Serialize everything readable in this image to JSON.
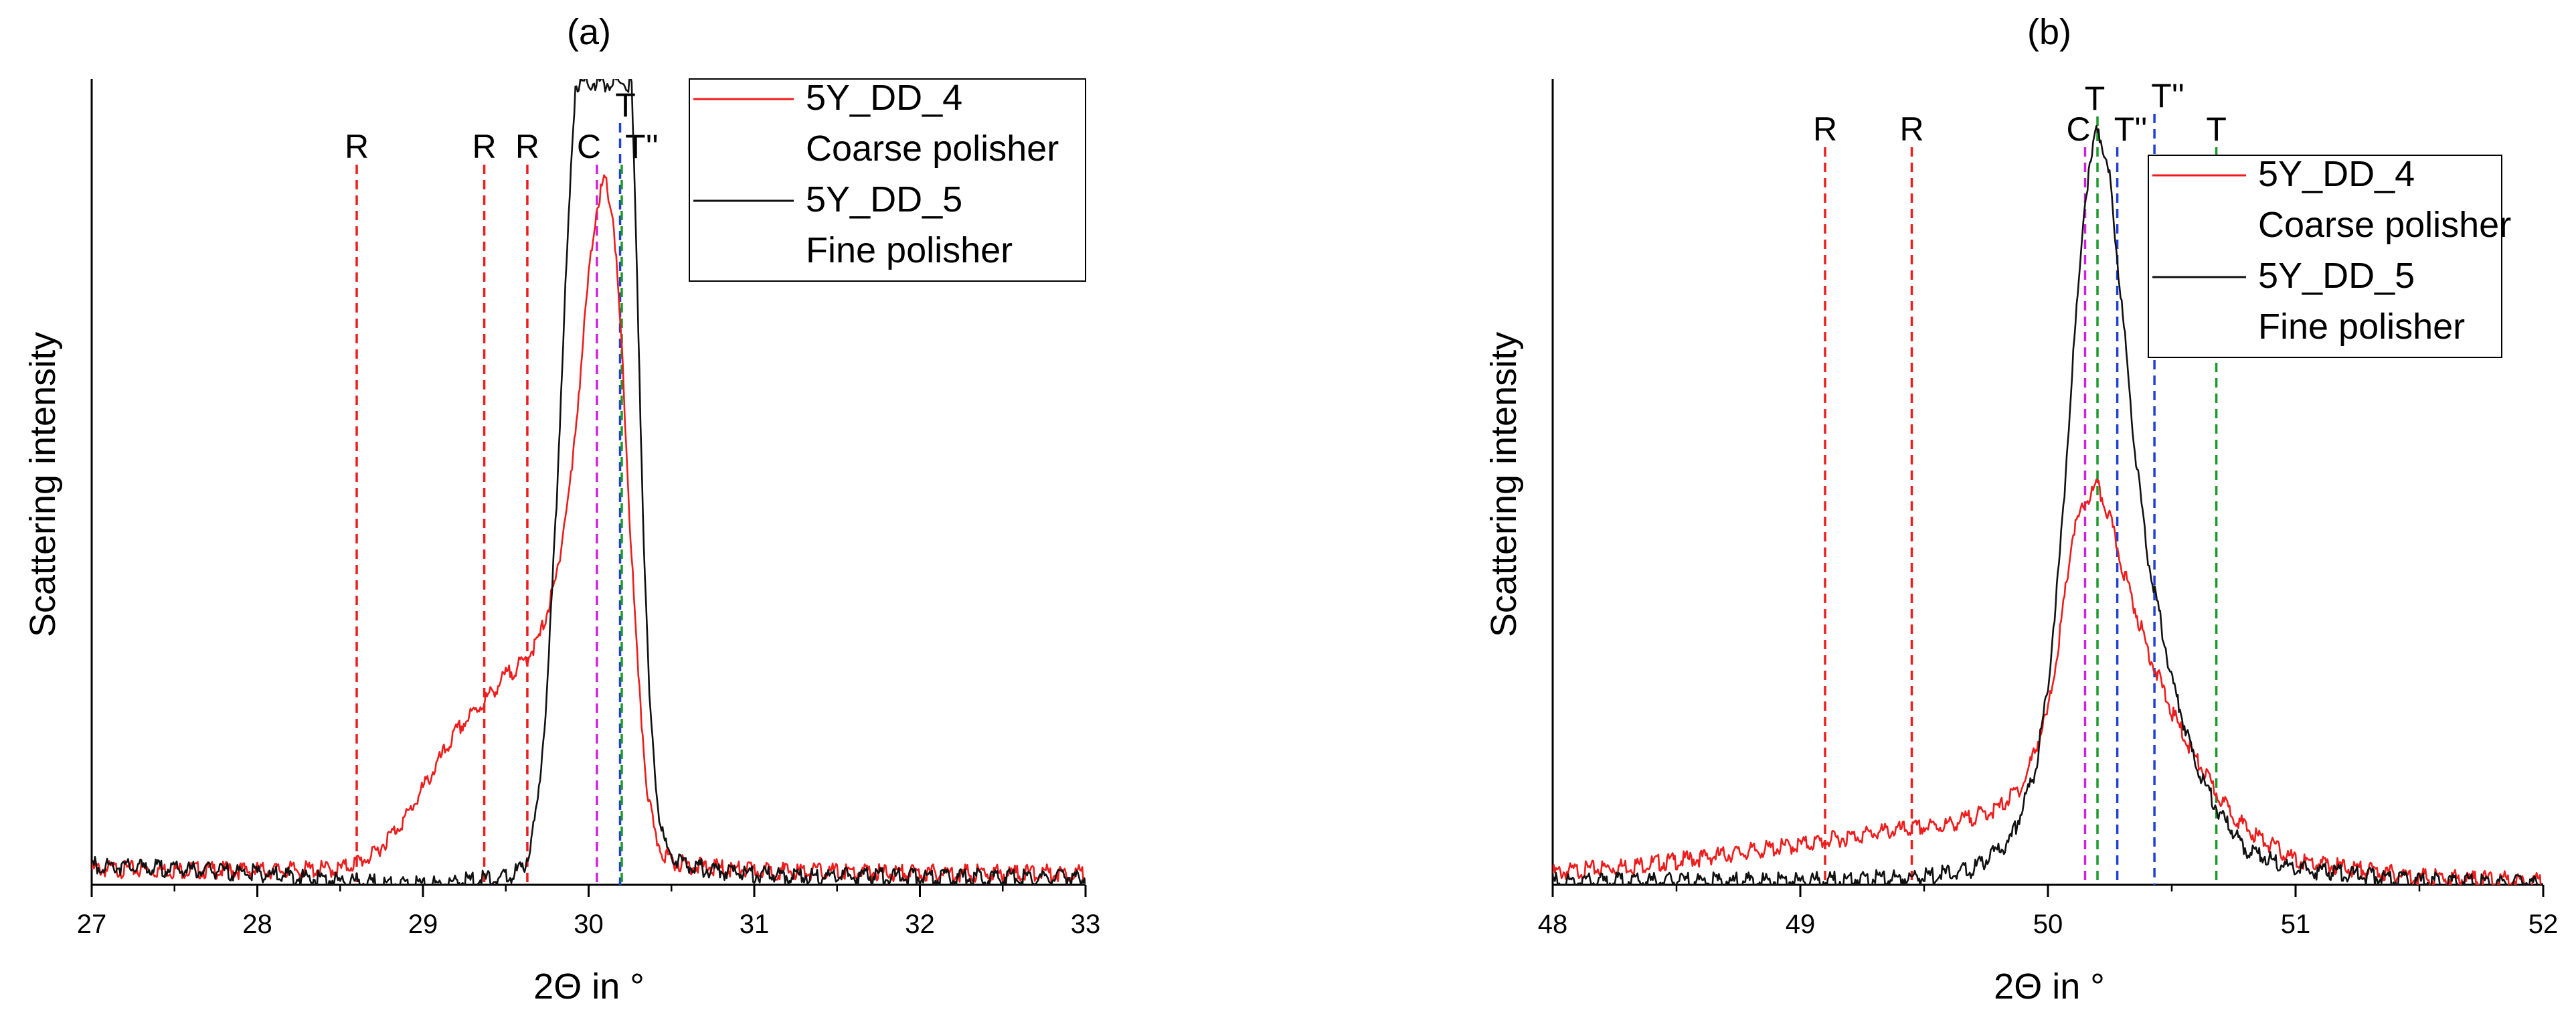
{
  "chart_data": [
    {
      "type": "line",
      "title": "(a)",
      "xlabel": "2Θ in °",
      "ylabel": "Scattering intensity",
      "xlim": [
        27,
        33
      ],
      "ylim": [
        0,
        100
      ],
      "xticks": [
        27,
        28,
        29,
        30,
        31,
        32,
        33
      ],
      "grid": false,
      "legend": {
        "placement": "top-right"
      },
      "series": [
        {
          "name": "5Y_DD_4 Coarse polisher",
          "legend_lines": [
            "5Y_DD_4",
            "Coarse polisher"
          ],
          "color": "#ee1c1c",
          "x": [
            27.0,
            28.0,
            28.5,
            28.7,
            28.9,
            29.0,
            29.1,
            29.2,
            29.3,
            29.4,
            29.5,
            29.6,
            29.7,
            29.8,
            29.9,
            29.95,
            30.0,
            30.05,
            30.1,
            30.15,
            30.2,
            30.25,
            30.3,
            30.35,
            30.4,
            30.45,
            30.5,
            30.6,
            30.8,
            31.0,
            32.0,
            33.0
          ],
          "y": [
            2.5,
            2.3,
            2.5,
            4.2,
            9.0,
            12.5,
            16.0,
            19.5,
            21.8,
            24.0,
            26.5,
            28.0,
            31.0,
            38.0,
            52.0,
            64.0,
            76.0,
            85.0,
            88.0,
            83.0,
            67.0,
            45.0,
            26.0,
            13.0,
            6.5,
            4.5,
            3.5,
            3.0,
            2.6,
            2.3,
            2.0,
            2.0
          ]
        },
        {
          "name": "5Y_DD_5 Fine polisher",
          "legend_lines": [
            "5Y_DD_5",
            "Fine polisher"
          ],
          "color": "#111111",
          "x": [
            27.0,
            28.0,
            28.5,
            29.0,
            29.5,
            29.6,
            29.65,
            29.7,
            29.75,
            29.8,
            29.85,
            29.9,
            29.92,
            30.26,
            30.3,
            30.33,
            30.37,
            30.42,
            30.47,
            30.55,
            30.7,
            31.0,
            32.0,
            33.0
          ],
          "y": [
            3.0,
            2.0,
            1.0,
            0.5,
            1.5,
            2.5,
            5.0,
            12.0,
            25.0,
            45.0,
            70.0,
            92.0,
            100.0,
            100.0,
            70.0,
            45.0,
            22.0,
            10.0,
            5.0,
            3.5,
            2.5,
            1.8,
            1.5,
            1.5
          ]
        }
      ],
      "reference_lines": [
        {
          "x": 28.6,
          "label": "R",
          "color": "#ee1c1c"
        },
        {
          "x": 29.37,
          "label": "R",
          "color": "#ee1c1c"
        },
        {
          "x": 29.63,
          "label": "R",
          "color": "#ee1c1c"
        },
        {
          "x": 30.05,
          "label": "C",
          "color": "#cc22dd"
        },
        {
          "x": 30.19,
          "label": "T",
          "color": "#1f3fd6"
        },
        {
          "x": 30.2,
          "label": "T''",
          "color": "#1a9a2a"
        }
      ]
    },
    {
      "type": "line",
      "title": "(b)",
      "xlabel": "2Θ in °",
      "ylabel": "Scattering intensity",
      "xlim": [
        48,
        52
      ],
      "ylim": [
        0,
        100
      ],
      "xticks": [
        48,
        49,
        50,
        51,
        52
      ],
      "grid": false,
      "legend": {
        "placement": "top-right"
      },
      "series": [
        {
          "name": "5Y_DD_4 Coarse polisher",
          "legend_lines": [
            "5Y_DD_4",
            "Coarse polisher"
          ],
          "color": "#ee1c1c",
          "x": [
            48.0,
            48.5,
            49.0,
            49.3,
            49.6,
            49.8,
            49.9,
            50.0,
            50.05,
            50.1,
            50.15,
            50.2,
            50.25,
            50.3,
            50.4,
            50.5,
            50.6,
            50.7,
            50.8,
            51.0,
            51.5,
            52.0
          ],
          "y": [
            2.0,
            3.5,
            5.5,
            7.0,
            8.0,
            10.0,
            13.0,
            22.0,
            32.0,
            44.0,
            48.0,
            50.0,
            46.0,
            40.0,
            30.0,
            22.0,
            16.0,
            11.0,
            7.5,
            3.5,
            1.5,
            1.0
          ]
        },
        {
          "name": "5Y_DD_5 Fine polisher",
          "legend_lines": [
            "5Y_DD_5",
            "Fine polisher"
          ],
          "color": "#111111",
          "x": [
            48.0,
            49.0,
            49.5,
            49.7,
            49.85,
            49.95,
            50.0,
            50.05,
            50.1,
            50.15,
            50.2,
            50.25,
            50.3,
            50.35,
            50.4,
            50.5,
            50.6,
            50.7,
            50.8,
            51.0,
            51.5,
            52.0
          ],
          "y": [
            1.0,
            1.0,
            1.5,
            2.5,
            6.0,
            15.0,
            25.0,
            42.0,
            65.0,
            86.0,
            95.0,
            88.0,
            72.0,
            55.0,
            42.0,
            26.0,
            15.0,
            9.0,
            5.0,
            2.5,
            1.0,
            0.8
          ]
        }
      ],
      "reference_lines": [
        {
          "x": 49.1,
          "label": "R",
          "color": "#ee1c1c"
        },
        {
          "x": 49.45,
          "label": "R",
          "color": "#ee1c1c"
        },
        {
          "x": 50.15,
          "label": "C",
          "color": "#cc22dd"
        },
        {
          "x": 50.2,
          "label": "T",
          "color": "#1a9a2a"
        },
        {
          "x": 50.28,
          "label": "T''",
          "color": "#1f3fd6"
        },
        {
          "x": 50.43,
          "label": "T''",
          "color": "#1f3fd6"
        },
        {
          "x": 50.68,
          "label": "T",
          "color": "#1a9a2a"
        }
      ]
    }
  ]
}
